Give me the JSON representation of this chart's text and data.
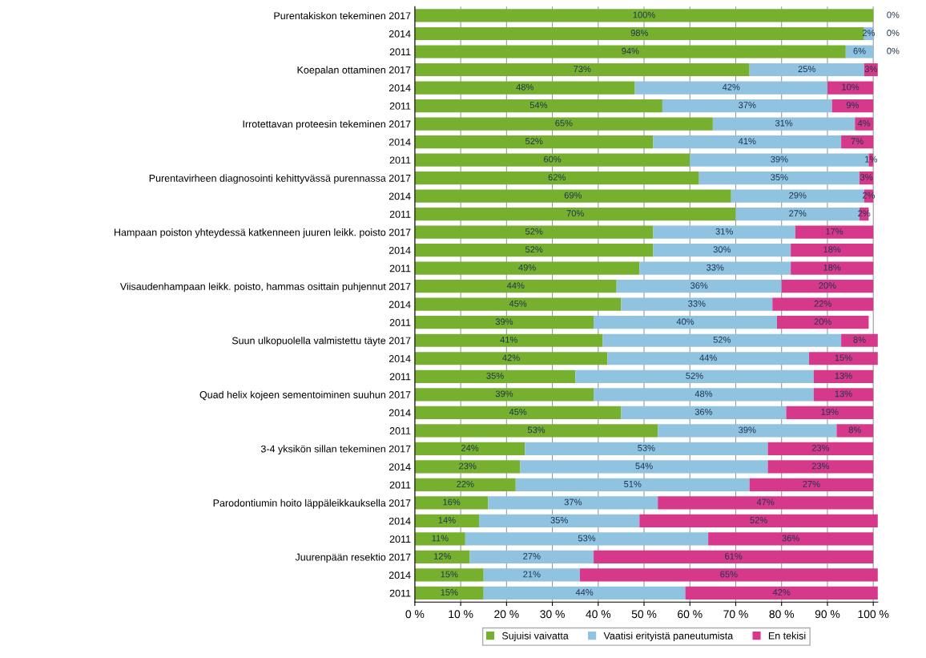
{
  "chart_data": {
    "type": "bar",
    "orientation": "horizontal",
    "stacked": true,
    "grid": "x",
    "legend": "bottom",
    "categories": [
      "Purentakiskon tekeminen 2017",
      "2014",
      "2011",
      "Koepalan ottaminen 2017",
      "2014",
      "2011",
      "Irrotettavan proteesin tekeminen 2017",
      "2014",
      "2011",
      "Purentavirheen diagnosointi kehittyvässä purennassa 2017",
      "2014",
      "2011",
      "Hampaan poiston yhteydessä katkenneen juuren leikk. poisto 2017",
      "2014",
      "2011",
      "Viisaudenhampaan leikk. poisto, hammas osittain puhjennut 2017",
      "2014",
      "2011",
      "Suun ulkopuolella valmistettu täyte 2017",
      "2014",
      "2011",
      "Quad helix kojeen sementoiminen suuhun 2017",
      "2014",
      "2011",
      "3-4 yksikön sillan tekeminen 2017",
      "2014",
      "2011",
      "Parodontiumin hoito läppäleikkauksella 2017",
      "2014",
      "2011",
      "Juurenpään resektio 2017",
      "2014",
      "2011"
    ],
    "series": [
      {
        "name": "Sujuisi vaivatta",
        "color": "#77b02f",
        "values": [
          100,
          98,
          94,
          73,
          48,
          54,
          65,
          52,
          60,
          62,
          69,
          70,
          52,
          52,
          49,
          44,
          45,
          39,
          41,
          42,
          35,
          39,
          45,
          53,
          24,
          23,
          22,
          16,
          14,
          11,
          12,
          15,
          15
        ],
        "value_labels": [
          "100%",
          "98%",
          "94%",
          "73%",
          "48%",
          "54%",
          "65%",
          "52%",
          "60%",
          "62%",
          "69%",
          "70%",
          "52%",
          "52%",
          "49%",
          "44%",
          "45%",
          "39%",
          "41%",
          "42%",
          "35%",
          "39%",
          "45%",
          "53%",
          "24%",
          "23%",
          "22%",
          "16%",
          "14%",
          "11%",
          "12%",
          "15%",
          "15%"
        ]
      },
      {
        "name": "Vaatisi erityistä paneutumista",
        "color": "#8fc3e0",
        "values": [
          0,
          2,
          6,
          25,
          42,
          37,
          31,
          41,
          39,
          35,
          29,
          27,
          31,
          30,
          33,
          36,
          33,
          40,
          52,
          44,
          52,
          48,
          36,
          39,
          53,
          54,
          51,
          37,
          35,
          53,
          27,
          21,
          44
        ],
        "value_labels": [
          null,
          "2%",
          "6%",
          "25%",
          "42%",
          "37%",
          "31%",
          "41%",
          "39%",
          "35%",
          "29%",
          "27%",
          "31%",
          "30%",
          "33%",
          "36%",
          "33%",
          "40%",
          "52%",
          "44%",
          "52%",
          "48%",
          "36%",
          "39%",
          "53%",
          "54%",
          "51%",
          "37%",
          "35%",
          "53%",
          "27%",
          "21%",
          "44%"
        ]
      },
      {
        "name": "En tekisi",
        "color": "#d6398a",
        "values": [
          0,
          0,
          0,
          3,
          10,
          9,
          4,
          7,
          1,
          3,
          2,
          2,
          17,
          18,
          18,
          20,
          22,
          20,
          8,
          15,
          13,
          13,
          19,
          8,
          23,
          23,
          27,
          47,
          52,
          36,
          61,
          65,
          42
        ],
        "value_labels": [
          "0%",
          "0%",
          "0%",
          "3%",
          "10%",
          "9%",
          "4%",
          "7%",
          "1%",
          "3%",
          "2%",
          "2%",
          "17%",
          "18%",
          "18%",
          "20%",
          "22%",
          "20%",
          "8%",
          "15%",
          "13%",
          "13%",
          "19%",
          "8%",
          "23%",
          "23%",
          "27%",
          "47%",
          "52%",
          "36%",
          "61%",
          "65%",
          "42%"
        ]
      }
    ],
    "xlim": [
      0,
      101
    ],
    "xticks": [
      {
        "value": 0,
        "label": "0 %"
      },
      {
        "value": 10,
        "label": "10 %"
      },
      {
        "value": 20,
        "label": "20 %"
      },
      {
        "value": 30,
        "label": "30 %"
      },
      {
        "value": 40,
        "label": "40 %"
      },
      {
        "value": 50,
        "label": "50 %"
      },
      {
        "value": 60,
        "label": "60 %"
      },
      {
        "value": 70,
        "label": "70 %"
      },
      {
        "value": 80,
        "label": "80 %"
      },
      {
        "value": 90,
        "label": "90 %"
      },
      {
        "value": 100,
        "label": "100 %"
      }
    ]
  }
}
